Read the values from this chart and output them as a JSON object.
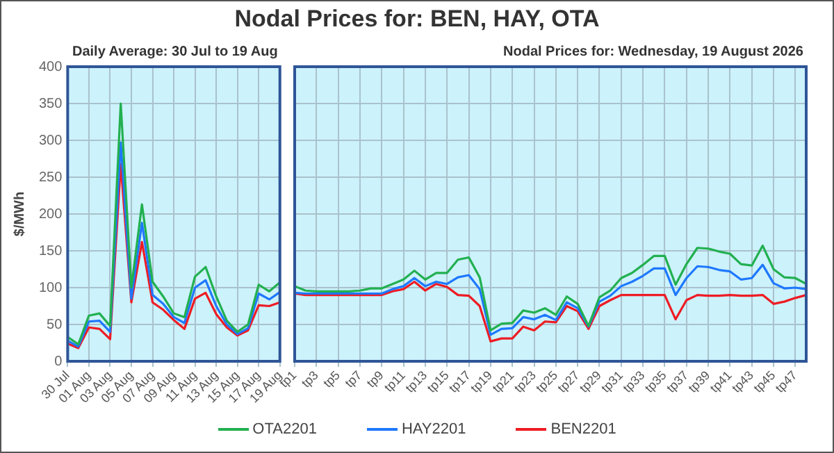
{
  "chart_data": [
    {
      "type": "line",
      "title": "Nodal Prices for: BEN, HAY, OTA",
      "subtitle": "Daily Average: 30 Jul to 19 Aug",
      "ylabel": "$/MWh",
      "categories": [
        "30 Jul",
        null,
        "01 Aug",
        null,
        "03 Aug",
        null,
        "05 Aug",
        null,
        "07 Aug",
        null,
        "09 Aug",
        null,
        "11 Aug",
        null,
        "13 Aug",
        null,
        "15 Aug",
        null,
        "17 Aug",
        null,
        "19 Aug"
      ],
      "series": [
        {
          "color": "#22b050",
          "values": [
            33,
            23,
            62,
            65,
            48,
            350,
            100,
            213,
            108,
            88,
            65,
            60,
            115,
            128,
            88,
            55,
            40,
            50,
            104,
            95,
            107
          ]
        },
        {
          "color": "#1e78ff",
          "values": [
            28,
            20,
            54,
            55,
            40,
            297,
            85,
            188,
            90,
            78,
            60,
            52,
            100,
            110,
            75,
            50,
            37,
            45,
            92,
            84,
            94
          ]
        },
        {
          "color": "#ee1c24",
          "values": [
            24,
            18,
            46,
            44,
            30,
            268,
            80,
            162,
            80,
            70,
            56,
            44,
            85,
            93,
            64,
            46,
            35,
            42,
            76,
            75,
            80
          ]
        }
      ],
      "ylim": [
        0,
        400
      ],
      "yticks": [
        0,
        50,
        100,
        150,
        200,
        250,
        300,
        350,
        400
      ],
      "grid": true,
      "marker": "none",
      "line_style": "solid"
    },
    {
      "type": "line",
      "subtitle": "Nodal Prices for: Wednesday, 19 August 2026",
      "categories": [
        "tp1",
        null,
        "tp3",
        null,
        "tp5",
        null,
        "tp7",
        null,
        "tp9",
        null,
        "tp11",
        null,
        "tp13",
        null,
        "tp15",
        null,
        "tp17",
        null,
        "tp19",
        null,
        "tp21",
        null,
        "tp23",
        null,
        "tp25",
        null,
        "tp27",
        null,
        "tp29",
        null,
        "tp31",
        null,
        "tp33",
        null,
        "tp35",
        null,
        "tp37",
        null,
        "tp39",
        null,
        "tp41",
        null,
        "tp43",
        null,
        "tp45",
        null,
        "tp47",
        null
      ],
      "series": [
        {
          "name": "OTA2201",
          "color": "#22b050",
          "values": [
            102,
            96,
            95,
            95,
            95,
            95,
            96,
            99,
            99,
            105,
            111,
            123,
            111,
            120,
            120,
            138,
            141,
            114,
            42,
            51,
            52,
            69,
            66,
            72,
            63,
            88,
            78,
            48,
            87,
            96,
            113,
            120,
            131,
            143,
            143,
            104,
            132,
            154,
            153,
            149,
            146,
            132,
            130,
            157,
            125,
            114,
            113,
            105
          ]
        },
        {
          "name": "HAY2201",
          "color": "#1e78ff",
          "values": [
            93,
            92,
            92,
            92,
            92,
            92,
            92,
            92,
            92,
            98,
            102,
            113,
            102,
            108,
            105,
            114,
            117,
            98,
            36,
            44,
            45,
            60,
            57,
            63,
            56,
            80,
            72,
            47,
            81,
            89,
            102,
            108,
            116,
            126,
            126,
            90,
            113,
            129,
            128,
            124,
            122,
            111,
            113,
            131,
            106,
            99,
            100,
            98
          ]
        },
        {
          "name": "BEN2201",
          "color": "#ee1c24",
          "values": [
            92,
            90,
            90,
            90,
            90,
            90,
            90,
            90,
            90,
            95,
            98,
            108,
            96,
            105,
            101,
            90,
            89,
            75,
            27,
            31,
            31,
            47,
            42,
            54,
            53,
            75,
            68,
            44,
            75,
            83,
            90,
            90,
            90,
            90,
            90,
            57,
            83,
            90,
            89,
            89,
            90,
            89,
            89,
            90,
            78,
            81,
            86,
            90
          ]
        }
      ],
      "ylim": [
        0,
        400
      ],
      "yticks": [
        0,
        50,
        100,
        150,
        200,
        250,
        300,
        350,
        400
      ],
      "grid": true,
      "marker": "none",
      "line_style": "solid",
      "tick_labels": "x",
      "legend": "bottom"
    }
  ]
}
